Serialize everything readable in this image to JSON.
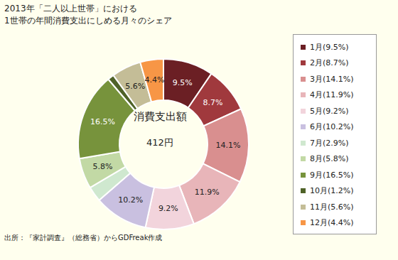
{
  "chart_data": {
    "type": "pie",
    "title": "2013年「二人以上世帯」における\n1世帯の年間消費支出にしめる月々のシェア",
    "categories": [
      "1月(9.5%)",
      "2月(8.7%)",
      "3月(14.1%)",
      "4月(11.9%)",
      "5月(9.2%)",
      "6月(10.2%)",
      "7月(2.9%)",
      "8月(5.8%)",
      "9月(16.5%)",
      "10月(1.2%)",
      "11月(5.6%)",
      "12月(4.4%)"
    ],
    "values": [
      9.5,
      8.7,
      14.1,
      11.9,
      9.2,
      10.2,
      2.9,
      5.8,
      16.5,
      1.2,
      5.6,
      4.4
    ],
    "value_labels": [
      "9.5%",
      "8.7%",
      "14.1%",
      "11.9%",
      "9.2%",
      "10.2%",
      null,
      "5.8%",
      "16.5%",
      null,
      "5.6%",
      "4.4%"
    ],
    "data_labels": true,
    "colors": [
      "#6b1f24",
      "#a0393d",
      "#d98f8f",
      "#e8b5b9",
      "#f2d4dc",
      "#c9c0e0",
      "#cfe8cf",
      "#c2d9a5",
      "#77933c",
      "#4f6228",
      "#c4bd97",
      "#f79646"
    ],
    "center_label": "消費支出額",
    "center_value": "412円",
    "source": "出所：『家計調査』（総務省）からGDFreak作成",
    "legend": "right"
  }
}
